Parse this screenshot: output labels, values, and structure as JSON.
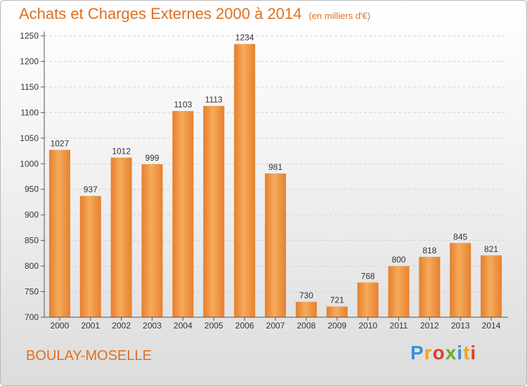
{
  "title": "Achats et Charges Externes 2000 à 2014",
  "unit_note": "(en milliers d'€)",
  "place": "BOULAY-MOSELLE",
  "logo": "Proxiti",
  "colors": {
    "bar_light": "#f6a95a",
    "bar_dark": "#e4802e",
    "accent": "#e0701f"
  },
  "chart_data": {
    "type": "bar",
    "categories": [
      "2000",
      "2001",
      "2002",
      "2003",
      "2004",
      "2005",
      "2006",
      "2007",
      "2008",
      "2009",
      "2010",
      "2011",
      "2012",
      "2013",
      "2014"
    ],
    "values": [
      1027,
      937,
      1012,
      999,
      1103,
      1113,
      1234,
      981,
      730,
      721,
      768,
      800,
      818,
      845,
      821
    ],
    "ylim": [
      700,
      1250
    ],
    "yticks": [
      700,
      750,
      800,
      850,
      900,
      950,
      1000,
      1050,
      1100,
      1150,
      1200,
      1250
    ],
    "grid": true,
    "xlabel": "",
    "ylabel": ""
  }
}
